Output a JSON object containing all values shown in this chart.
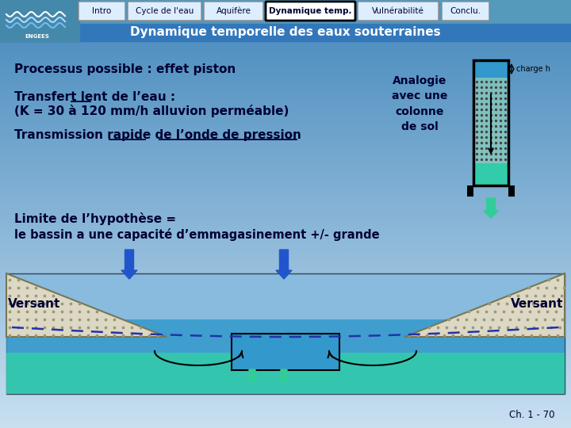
{
  "bg_color": "#5599cc",
  "nav_buttons": [
    "Intro",
    "Cycle de l'eau",
    "Aquifère",
    "Dynamique temp.",
    "Vulnérabilité",
    "Conclu."
  ],
  "nav_active": 3,
  "nav_button_color": "#ddeeff",
  "nav_active_color": "#ffffff",
  "title_text": "Dynamique temporelle des eaux souterraines",
  "title_color": "#ffffff",
  "text1": "Processus possible : effet piston",
  "text2_line1": "Transfert lent de l’eau :",
  "text2_line2": "(K = 30 à 120 mm/h alluvion perméable)",
  "text3": "Transmission rapide de l’onde de pression",
  "text4_line1": "Limite de l’hypothèse =",
  "text4_line2": "le bassin a une capacité d’emmagasinement +/- grande",
  "analogy_text": "Analogie\navec une\ncolonne\nde sol",
  "charge_h": "charge h",
  "versant_left": "Versant",
  "versant_right": "Versant",
  "page_num": "Ch. 1 - 70",
  "text_dark": "#000033",
  "water_blue": "#3399cc",
  "water_green": "#33ccaa",
  "arrow_green": "#33cc99"
}
